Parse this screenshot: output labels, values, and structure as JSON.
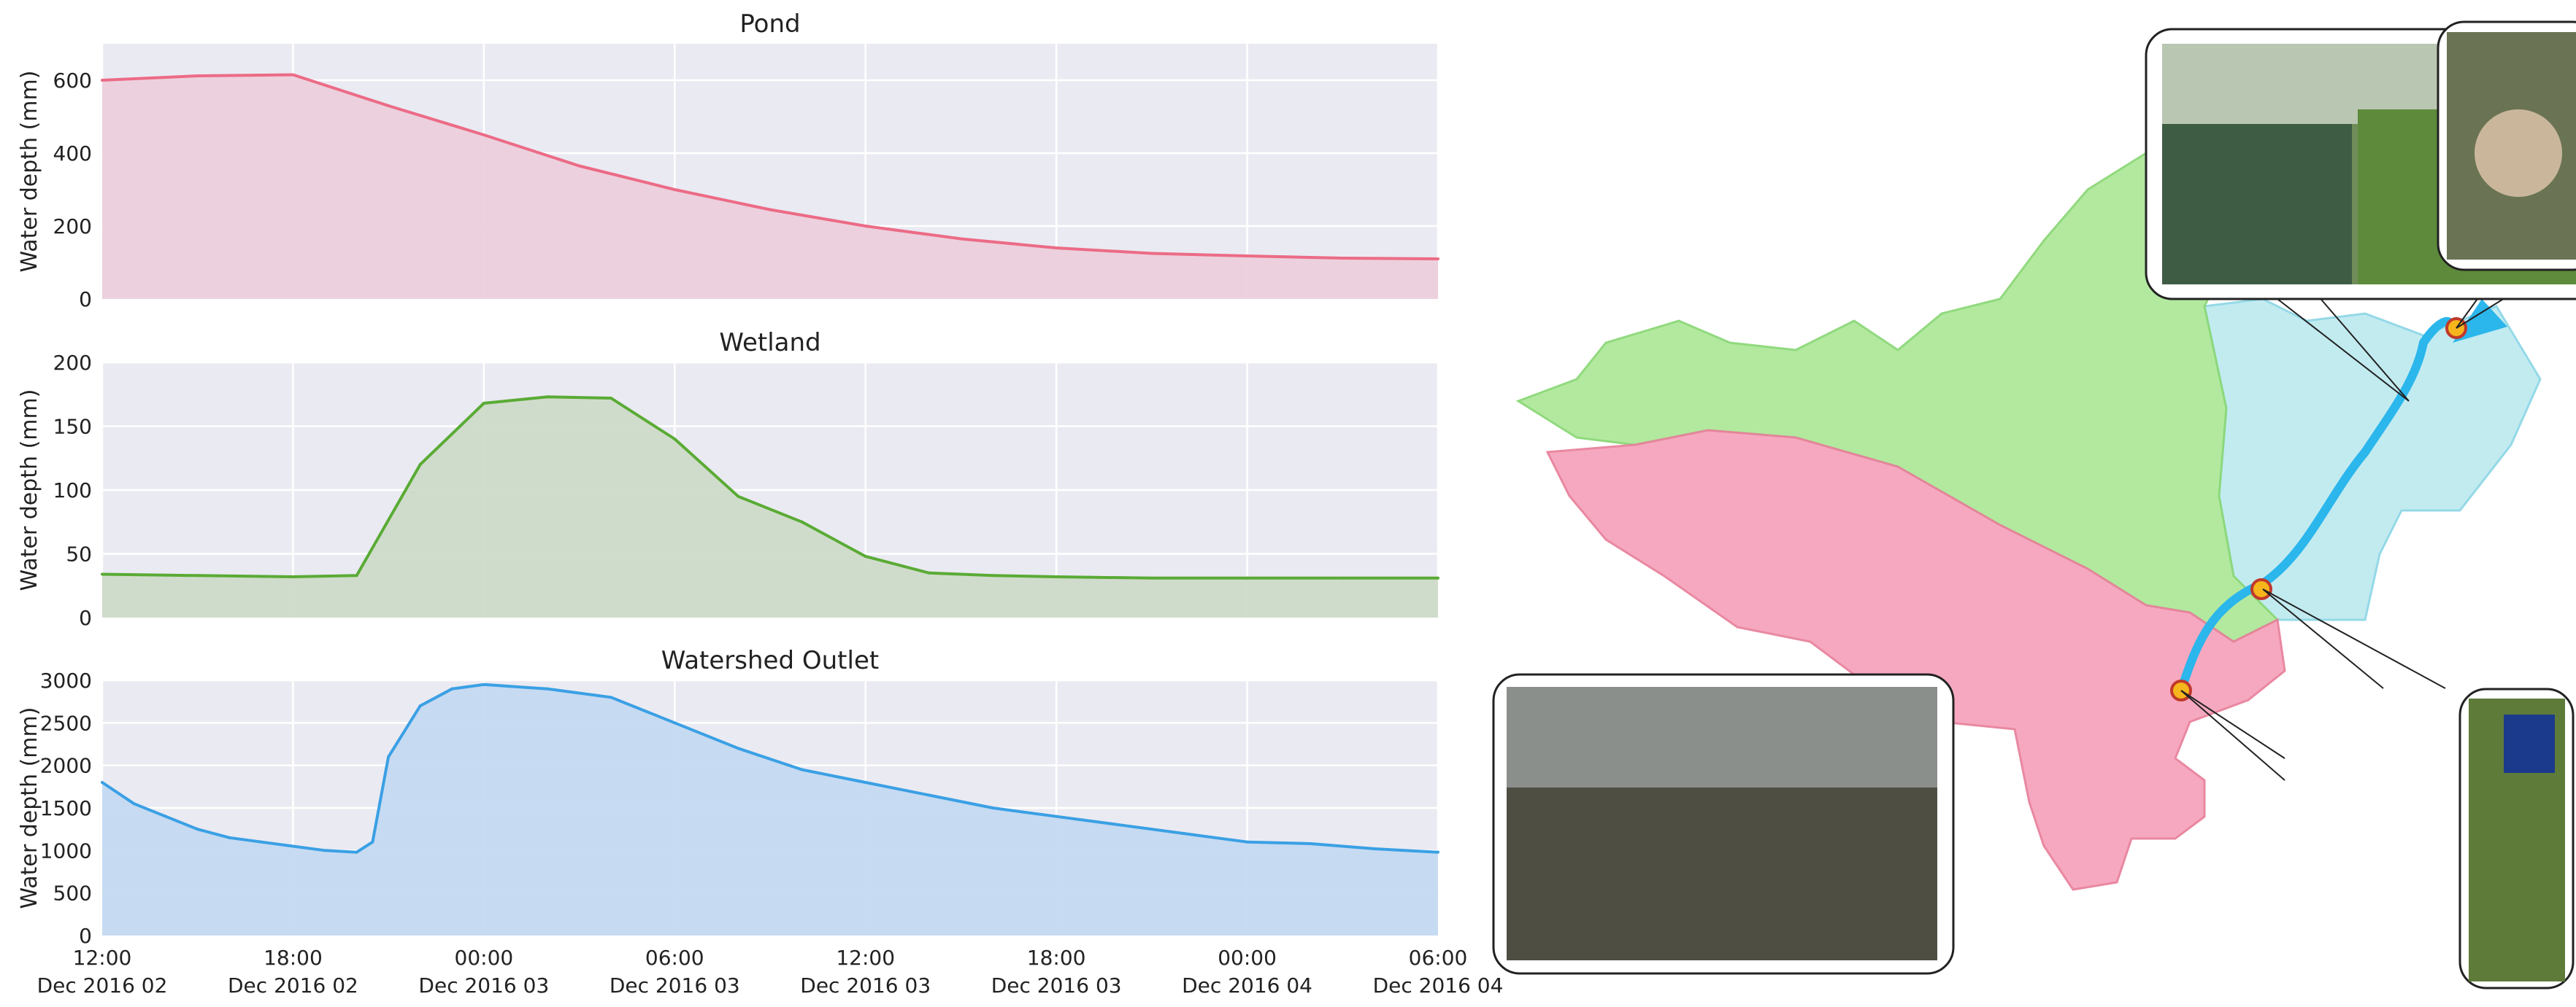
{
  "charts": [
    {
      "type": "area",
      "title": "Pond",
      "ylabel": "Water depth (mm)",
      "ylim": [
        0,
        700
      ],
      "yticks": [
        0,
        200,
        400,
        600
      ],
      "color": "#ec6b86",
      "fill": "#eccfdb",
      "x": [
        0,
        3,
        6,
        9,
        12,
        15,
        18,
        21,
        24,
        27,
        30,
        33,
        36,
        39,
        42
      ],
      "values": [
        600,
        612,
        615,
        530,
        450,
        365,
        300,
        245,
        200,
        165,
        140,
        125,
        118,
        112,
        110
      ]
    },
    {
      "type": "area",
      "title": "Wetland",
      "ylabel": "Water depth (mm)",
      "ylim": [
        0,
        200
      ],
      "yticks": [
        0,
        50,
        100,
        150,
        200
      ],
      "color": "#5aab35",
      "fill": "#cfdbc8",
      "x": [
        0,
        3,
        6,
        8,
        10,
        12,
        14,
        16,
        18,
        20,
        22,
        24,
        26,
        28,
        30,
        33,
        36,
        39,
        42
      ],
      "values": [
        34,
        33,
        32,
        33,
        120,
        168,
        173,
        172,
        140,
        95,
        75,
        48,
        35,
        33,
        32,
        31,
        31,
        31,
        31
      ]
    },
    {
      "type": "area",
      "title": "Watershed Outlet",
      "ylabel": "Water depth (mm)",
      "ylim": [
        0,
        3000
      ],
      "yticks": [
        0,
        500,
        1000,
        1500,
        2000,
        2500,
        3000
      ],
      "color": "#3aa0e4",
      "fill": "#c4d9f1",
      "x": [
        0,
        1,
        2,
        3,
        4,
        5,
        6,
        7,
        8,
        8.5,
        9,
        10,
        11,
        12,
        14,
        16,
        18,
        20,
        22,
        24,
        26,
        28,
        30,
        32,
        34,
        36,
        38,
        40,
        42
      ],
      "values": [
        1800,
        1550,
        1400,
        1250,
        1150,
        1100,
        1050,
        1000,
        980,
        1100,
        2100,
        2700,
        2900,
        2950,
        2900,
        2800,
        2500,
        2200,
        1950,
        1800,
        1650,
        1500,
        1400,
        1300,
        1200,
        1100,
        1080,
        1020,
        980
      ]
    }
  ],
  "x_ticks": [
    {
      "t": 0,
      "time": "12:00",
      "date": "Dec 2016 02"
    },
    {
      "t": 6,
      "time": "18:00",
      "date": "Dec 2016 02"
    },
    {
      "t": 12,
      "time": "00:00",
      "date": "Dec 2016 03"
    },
    {
      "t": 18,
      "time": "06:00",
      "date": "Dec 2016 03"
    },
    {
      "t": 24,
      "time": "12:00",
      "date": "Dec 2016 03"
    },
    {
      "t": 30,
      "time": "18:00",
      "date": "Dec 2016 03"
    },
    {
      "t": 36,
      "time": "00:00",
      "date": "Dec 2016 04"
    },
    {
      "t": 42,
      "time": "06:00",
      "date": "Dec 2016 04"
    }
  ],
  "x_range": [
    0,
    42
  ],
  "map": {
    "colors": {
      "pond_area": "#f6a4bd",
      "wetland_area": "#aee89a",
      "outlet_area": "#bfeaf0",
      "stream": "#2bb6ec",
      "sensor": "#f6b51c"
    }
  }
}
